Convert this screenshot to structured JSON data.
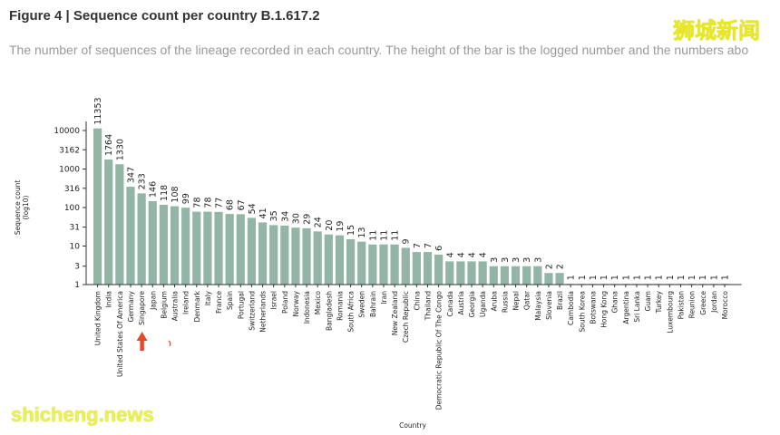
{
  "header": {
    "title": "Figure 4 | Sequence count per country B.1.617.2",
    "caption": "The number of sequences of the lineage recorded in each country. The height of the bar is the logged number and the numbers abo"
  },
  "watermarks": {
    "cn": "狮城新闻",
    "en": "shicheng.news"
  },
  "colors": {
    "bar": "#93b5a6",
    "axis": "#333333",
    "arrow": "#e24a2a"
  },
  "chart_data": {
    "type": "bar",
    "title": "",
    "xlabel": "Country",
    "ylabel": "Sequence count\n(log10)",
    "yscale": "log10",
    "ylim": [
      1,
      14000
    ],
    "yticks": [
      1,
      3,
      10,
      31,
      100,
      316,
      1000,
      3162,
      10000
    ],
    "categories": [
      "United Kingdom",
      "India",
      "United States Of America",
      "Germany",
      "Singapore",
      "Japan",
      "Belgium",
      "Australia",
      "Ireland",
      "Denmark",
      "Italy",
      "France",
      "Spain",
      "Portugal",
      "Switzerland",
      "Netherlands",
      "Israel",
      "Poland",
      "Norway",
      "Indonesia",
      "Mexico",
      "Bangladesh",
      "Romania",
      "South Africa",
      "Sweden",
      "Bahrain",
      "Iran",
      "New Zealand",
      "Czech Republic",
      "China",
      "Thailand",
      "Democratic Republic Of The Congo",
      "Canada",
      "Austria",
      "Georgia",
      "Uganda",
      "Aruba",
      "Russia",
      "Nepal",
      "Qatar",
      "Malaysia",
      "Slovenia",
      "Brazil",
      "Cambodia",
      "South Korea",
      "Botswana",
      "Hong Kong",
      "Ghana",
      "Argentina",
      "Sri Lanka",
      "Guam",
      "Turkey",
      "Luxembourg",
      "Pakistan",
      "Reunion",
      "Greece",
      "Jordan",
      "Morocco"
    ],
    "values": [
      11353,
      1764,
      1330,
      347,
      233,
      146,
      118,
      108,
      99,
      78,
      78,
      77,
      68,
      67,
      54,
      41,
      35,
      34,
      30,
      29,
      24,
      20,
      19,
      15,
      13,
      11,
      11,
      11,
      9,
      7,
      7,
      6,
      4,
      4,
      4,
      4,
      3,
      3,
      3,
      3,
      3,
      2,
      2,
      1,
      1,
      1,
      1,
      1,
      1,
      1,
      1,
      1,
      1,
      1,
      1,
      1,
      1,
      1
    ],
    "annotations": [
      {
        "type": "arrow",
        "target": "Singapore"
      }
    ]
  }
}
